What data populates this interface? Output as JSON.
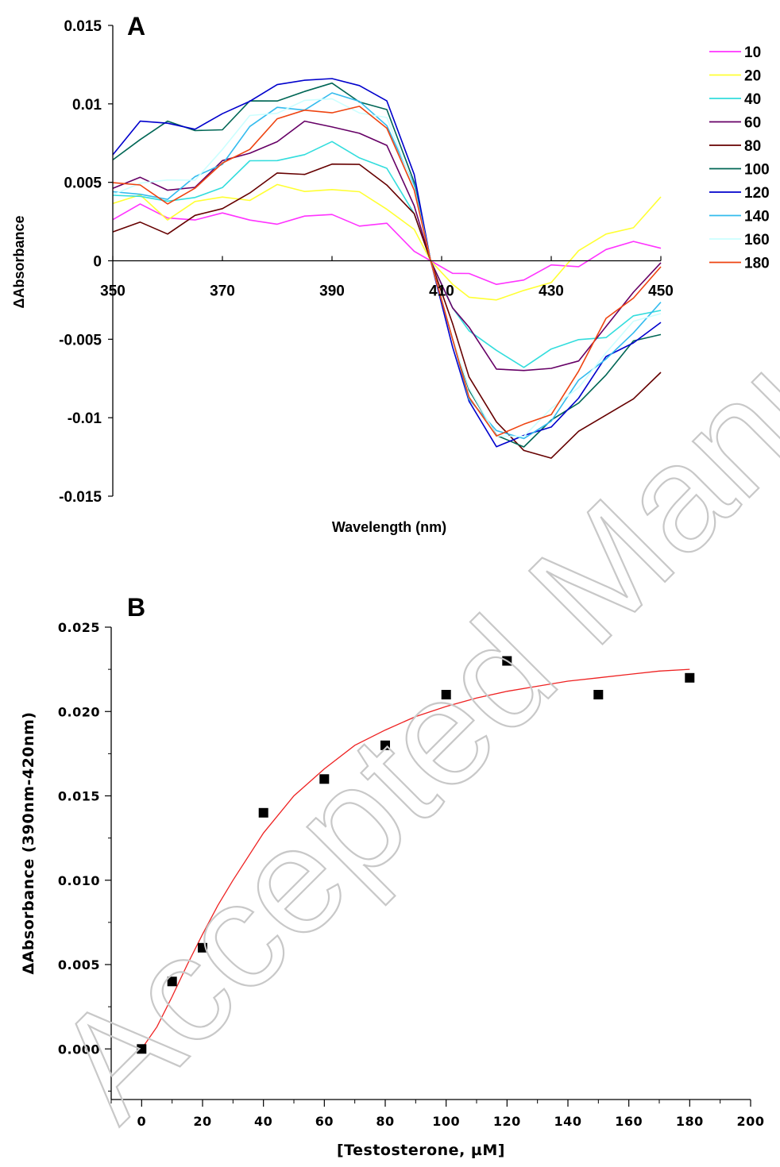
{
  "watermark": "Accepted Manuscript",
  "chart_data": [
    {
      "panel": "A",
      "type": "line",
      "xlabel": "Wavelength (nm)",
      "ylabel": "ΔAbsorbance",
      "xlim": [
        350,
        450
      ],
      "ylim": [
        -0.015,
        0.015
      ],
      "x_ticks": [
        350,
        370,
        390,
        410,
        430,
        450
      ],
      "y_ticks": [
        0.015,
        0.01,
        0.005,
        0,
        -0.005,
        -0.01,
        -0.015
      ],
      "y_tick_labels": [
        "0.015",
        "0.01",
        "0.005",
        "0",
        "-0.005",
        "-0.01",
        "-0.015"
      ],
      "legend": "right",
      "x": [
        350,
        355,
        360,
        365,
        370,
        375,
        380,
        385,
        390,
        395,
        400,
        405,
        408,
        412,
        415,
        420,
        425,
        430,
        435,
        440,
        445,
        450
      ],
      "series": [
        {
          "name": "10",
          "color": "#ff33ff",
          "values": [
            0.003,
            0.0035,
            0.0025,
            0.003,
            0.0028,
            0.0025,
            0.0027,
            0.0025,
            0.003,
            0.0025,
            0.002,
            0.0006,
            0.0,
            -0.0008,
            -0.0012,
            -0.0012,
            -0.0012,
            -0.0006,
            0.0,
            0.0006,
            0.001,
            0.0012
          ]
        },
        {
          "name": "20",
          "color": "#ffff33",
          "values": [
            0.0035,
            0.004,
            0.003,
            0.0035,
            0.004,
            0.0042,
            0.0045,
            0.0045,
            0.0048,
            0.004,
            0.0035,
            0.002,
            0.0,
            -0.0015,
            -0.002,
            -0.0025,
            -0.0022,
            -0.001,
            0.0005,
            0.0015,
            0.0025,
            0.0038
          ]
        },
        {
          "name": "40",
          "color": "#33dddd",
          "values": [
            0.004,
            0.0045,
            0.0035,
            0.004,
            0.005,
            0.006,
            0.0065,
            0.007,
            0.0072,
            0.0068,
            0.006,
            0.003,
            0.0,
            -0.003,
            -0.0045,
            -0.006,
            -0.0064,
            -0.0058,
            -0.0052,
            -0.0045,
            -0.0038,
            -0.0032
          ]
        },
        {
          "name": "60",
          "color": "#660066",
          "values": [
            0.005,
            0.005,
            0.0045,
            0.005,
            0.006,
            0.007,
            0.0078,
            0.0085,
            0.0088,
            0.0082,
            0.007,
            0.0035,
            0.0,
            -0.003,
            -0.0045,
            -0.0065,
            -0.0072,
            -0.007,
            -0.006,
            -0.0045,
            -0.002,
            0.0002
          ]
        },
        {
          "name": "80",
          "color": "#660000",
          "values": [
            0.0015,
            0.0025,
            0.002,
            0.0025,
            0.0035,
            0.0045,
            0.0052,
            0.0058,
            0.0062,
            0.0058,
            0.0052,
            0.003,
            0.0,
            -0.004,
            -0.007,
            -0.0105,
            -0.0122,
            -0.0122,
            -0.0112,
            -0.0098,
            -0.0085,
            -0.0075
          ]
        },
        {
          "name": "100",
          "color": "#006655",
          "values": [
            0.0065,
            0.008,
            0.0085,
            0.0085,
            0.0085,
            0.0098,
            0.0105,
            0.0108,
            0.011,
            0.0105,
            0.0095,
            0.005,
            0.0,
            -0.005,
            -0.0085,
            -0.0112,
            -0.0115,
            -0.0105,
            -0.009,
            -0.007,
            -0.0055,
            -0.0045
          ]
        },
        {
          "name": "120",
          "color": "#0000cc",
          "values": [
            0.007,
            0.0085,
            0.009,
            0.0085,
            0.009,
            0.0105,
            0.0112,
            0.0112,
            0.012,
            0.011,
            0.01,
            0.0055,
            0.0,
            -0.0055,
            -0.009,
            -0.0115,
            -0.0115,
            -0.0105,
            -0.0085,
            -0.0065,
            -0.005,
            -0.0038
          ]
        },
        {
          "name": "140",
          "color": "#33bbee",
          "values": [
            0.004,
            0.0045,
            0.004,
            0.005,
            0.0065,
            0.0085,
            0.0095,
            0.01,
            0.0105,
            0.01,
            0.009,
            0.0048,
            0.0,
            -0.005,
            -0.0085,
            -0.0112,
            -0.0112,
            -0.01,
            -0.008,
            -0.006,
            -0.0045,
            -0.003
          ]
        },
        {
          "name": "160",
          "color": "#ccffff",
          "values": [
            0.0045,
            0.005,
            0.0048,
            0.0055,
            0.007,
            0.009,
            0.0098,
            0.01,
            0.0102,
            0.0098,
            0.0088,
            0.0046,
            0.0,
            -0.005,
            -0.0085,
            -0.011,
            -0.011,
            -0.0098,
            -0.0078,
            -0.0058,
            -0.0042,
            -0.003
          ]
        },
        {
          "name": "180",
          "color": "#ee4411",
          "values": [
            0.005,
            0.0045,
            0.004,
            0.0045,
            0.006,
            0.0075,
            0.0088,
            0.0095,
            0.0098,
            0.0095,
            0.0085,
            0.0045,
            0.0,
            -0.005,
            -0.0085,
            -0.011,
            -0.0108,
            -0.0095,
            -0.007,
            -0.004,
            -0.002,
            -0.0005
          ]
        }
      ]
    },
    {
      "panel": "B",
      "type": "scatter",
      "xlabel": "[Testosterone, µM]",
      "ylabel": "ΔAbsorbance (390nm-420nm)",
      "xlim": [
        -10,
        200
      ],
      "ylim": [
        -0.003,
        0.025
      ],
      "x_ticks": [
        0,
        20,
        40,
        60,
        80,
        100,
        120,
        140,
        160,
        180,
        200
      ],
      "y_ticks": [
        0.0,
        0.005,
        0.01,
        0.015,
        0.02,
        0.025
      ],
      "y_tick_labels": [
        "0.000",
        "0.005",
        "0.010",
        "0.015",
        "0.020",
        "0.025"
      ],
      "points": [
        {
          "x": 0,
          "y": 0.0
        },
        {
          "x": 10,
          "y": 0.004
        },
        {
          "x": 20,
          "y": 0.006
        },
        {
          "x": 40,
          "y": 0.014
        },
        {
          "x": 60,
          "y": 0.016
        },
        {
          "x": 80,
          "y": 0.018
        },
        {
          "x": 100,
          "y": 0.021
        },
        {
          "x": 120,
          "y": 0.023
        },
        {
          "x": 150,
          "y": 0.021
        },
        {
          "x": 180,
          "y": 0.022
        }
      ],
      "fit": {
        "color": "#ee2222",
        "x": [
          0,
          5,
          10,
          15,
          20,
          25,
          30,
          40,
          50,
          60,
          70,
          80,
          90,
          100,
          110,
          120,
          130,
          140,
          150,
          160,
          170,
          180
        ],
        "y": [
          0.0,
          0.0013,
          0.0031,
          0.005,
          0.0068,
          0.0085,
          0.01,
          0.0128,
          0.015,
          0.0166,
          0.018,
          0.0189,
          0.0197,
          0.0203,
          0.0208,
          0.0212,
          0.0215,
          0.0218,
          0.022,
          0.0222,
          0.0224,
          0.0225
        ]
      }
    }
  ]
}
